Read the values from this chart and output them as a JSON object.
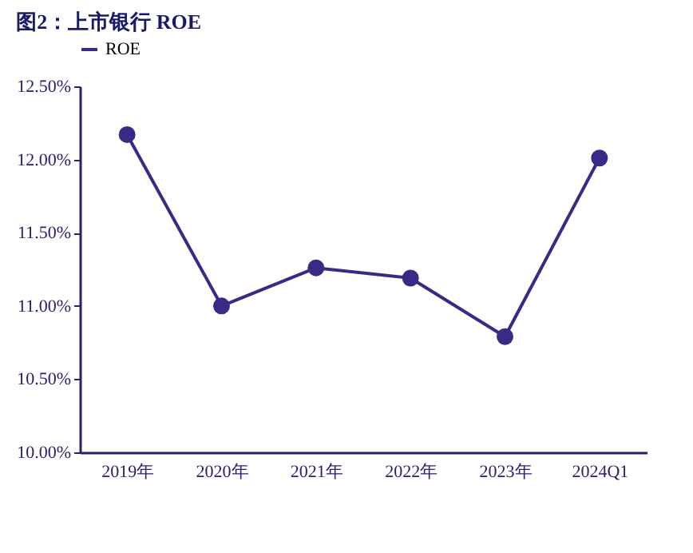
{
  "chart_data": {
    "type": "line",
    "title": "图2：上市银行 ROE",
    "categories": [
      "2019年",
      "2020年",
      "2021年",
      "2022年",
      "2023年",
      "2024Q1"
    ],
    "series": [
      {
        "name": "ROE",
        "color": "#3b2a85",
        "values": [
          12.17,
          11.0,
          11.26,
          11.19,
          10.79,
          12.01
        ]
      }
    ],
    "ylim": [
      10.0,
      12.5
    ],
    "yticks": [
      {
        "value": 10.0,
        "label": "10.00%"
      },
      {
        "value": 10.5,
        "label": "10.50%"
      },
      {
        "value": 11.0,
        "label": "11.00%"
      },
      {
        "value": 11.5,
        "label": "11.50%"
      },
      {
        "value": 12.0,
        "label": "12.00%"
      },
      {
        "value": 12.5,
        "label": "12.50%"
      }
    ],
    "grid": false,
    "legend": "top",
    "marker": "circle",
    "line_style": "solid"
  }
}
